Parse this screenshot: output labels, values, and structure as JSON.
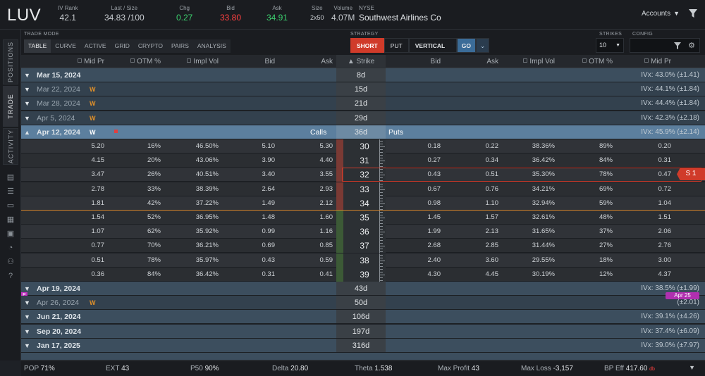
{
  "header": {
    "symbol": "LUV",
    "iv_rank": {
      "label": "IV Rank",
      "value": "42.1"
    },
    "last_size": {
      "label": "Last / Size",
      "value": "34.83 /100"
    },
    "chg": {
      "label": "Chg",
      "value": "0.27"
    },
    "bid": {
      "label": "Bid",
      "value": "33.80"
    },
    "ask": {
      "label": "Ask",
      "value": "34.91"
    },
    "size": {
      "label": "Size",
      "value": "2x50"
    },
    "volume": {
      "label": "Volume",
      "value": "4.07M"
    },
    "exchange": "NYSE",
    "company": "Southwest Airlines Co",
    "accounts": "Accounts"
  },
  "rail": {
    "tabs": [
      "POSITIONS",
      "TRADE",
      "ACTIVITY"
    ]
  },
  "toolbar": {
    "trade_mode_label": "TRADE MODE",
    "tabs": [
      "TABLE",
      "CURVE",
      "ACTIVE",
      "GRID",
      "CRYPTO",
      "PAIRS",
      "ANALYSIS"
    ],
    "strategy_label": "STRATEGY",
    "short": "SHORT",
    "put": "PUT",
    "vertical": "VERTICAL",
    "go": "GO",
    "strikes_label": "STRIKES",
    "strikes_value": "10",
    "config_label": "CONFIG"
  },
  "columns": {
    "call_mid": "Mid Pr",
    "call_otm": "OTM %",
    "call_iv": "Impl Vol",
    "call_bid": "Bid",
    "call_ask": "Ask",
    "strike": "Strike",
    "put_bid": "Bid",
    "put_ask": "Ask",
    "put_iv": "Impl Vol",
    "put_otm": "OTM %",
    "put_mid": "Mid Pr"
  },
  "expirations_top": [
    {
      "date": "Mar 15, 2024",
      "w": "",
      "dte": "8d",
      "ivx": "IVx: 43.0% (±1.41)",
      "dim": false
    },
    {
      "date": "Mar 22, 2024",
      "w": "W",
      "dte": "15d",
      "ivx": "IVx: 44.1% (±1.84)",
      "dim": true
    },
    {
      "date": "Mar 28, 2024",
      "w": "W",
      "dte": "21d",
      "ivx": "IVx: 44.4% (±1.84)",
      "dim": true
    },
    {
      "date": "Apr 5, 2024",
      "w": "W",
      "dte": "29d",
      "ivx": "IVx: 42.3% (±2.18)",
      "dim": true
    }
  ],
  "open_expiration": {
    "date": "Apr 12, 2024",
    "w": "W",
    "dte": "36d",
    "calls": "Calls",
    "puts": "Puts",
    "ivx": "IVx: 45.9% (±2.14)"
  },
  "strikes": [
    {
      "strike": "30",
      "c_mid": "5.20",
      "c_otm": "16%",
      "c_iv": "46.50%",
      "c_bid": "5.10",
      "c_ask": "5.30",
      "p_bid": "0.18",
      "p_ask": "0.22",
      "p_iv": "38.36%",
      "p_otm": "89%",
      "p_mid": "0.20"
    },
    {
      "strike": "31",
      "c_mid": "4.15",
      "c_otm": "20%",
      "c_iv": "43.06%",
      "c_bid": "3.90",
      "c_ask": "4.40",
      "p_bid": "0.27",
      "p_ask": "0.34",
      "p_iv": "36.42%",
      "p_otm": "84%",
      "p_mid": "0.31"
    },
    {
      "strike": "32",
      "c_mid": "3.47",
      "c_otm": "26%",
      "c_iv": "40.51%",
      "c_bid": "3.40",
      "c_ask": "3.55",
      "p_bid": "0.43",
      "p_ask": "0.51",
      "p_iv": "35.30%",
      "p_otm": "78%",
      "p_mid": "0.47"
    },
    {
      "strike": "33",
      "c_mid": "2.78",
      "c_otm": "33%",
      "c_iv": "38.39%",
      "c_bid": "2.64",
      "c_ask": "2.93",
      "p_bid": "0.67",
      "p_ask": "0.76",
      "p_iv": "34.21%",
      "p_otm": "69%",
      "p_mid": "0.72"
    },
    {
      "strike": "34",
      "c_mid": "1.81",
      "c_otm": "42%",
      "c_iv": "37.22%",
      "c_bid": "1.49",
      "c_ask": "2.12",
      "p_bid": "0.98",
      "p_ask": "1.10",
      "p_iv": "32.94%",
      "p_otm": "59%",
      "p_mid": "1.04"
    },
    {
      "strike": "35",
      "c_mid": "1.54",
      "c_otm": "52%",
      "c_iv": "36.95%",
      "c_bid": "1.48",
      "c_ask": "1.60",
      "p_bid": "1.45",
      "p_ask": "1.57",
      "p_iv": "32.61%",
      "p_otm": "48%",
      "p_mid": "1.51"
    },
    {
      "strike": "36",
      "c_mid": "1.07",
      "c_otm": "62%",
      "c_iv": "35.92%",
      "c_bid": "0.99",
      "c_ask": "1.16",
      "p_bid": "1.99",
      "p_ask": "2.13",
      "p_iv": "31.65%",
      "p_otm": "37%",
      "p_mid": "2.06"
    },
    {
      "strike": "37",
      "c_mid": "0.77",
      "c_otm": "70%",
      "c_iv": "36.21%",
      "c_bid": "0.69",
      "c_ask": "0.85",
      "p_bid": "2.68",
      "p_ask": "2.85",
      "p_iv": "31.44%",
      "p_otm": "27%",
      "p_mid": "2.76"
    },
    {
      "strike": "38",
      "c_mid": "0.51",
      "c_otm": "78%",
      "c_iv": "35.97%",
      "c_bid": "0.43",
      "c_ask": "0.59",
      "p_bid": "2.40",
      "p_ask": "3.60",
      "p_iv": "29.55%",
      "p_otm": "18%",
      "p_mid": "3.00"
    },
    {
      "strike": "39",
      "c_mid": "0.36",
      "c_otm": "84%",
      "c_iv": "36.42%",
      "c_bid": "0.31",
      "c_ask": "0.41",
      "p_bid": "4.30",
      "p_ask": "4.45",
      "p_iv": "30.19%",
      "p_otm": "12%",
      "p_mid": "4.37"
    }
  ],
  "selected_label": "S 1",
  "expirations_bottom": [
    {
      "date": "Apr 19, 2024",
      "w": "",
      "dte": "43d",
      "ivx": "IVx: 38.5% (±1.99)",
      "dim": false
    },
    {
      "date": "Apr 26, 2024",
      "w": "W",
      "dte": "50d",
      "ivx": "(±2.01)",
      "dim": true
    },
    {
      "date": "Jun 21, 2024",
      "w": "",
      "dte": "106d",
      "ivx": "IVx: 39.1% (±4.26)",
      "dim": false
    },
    {
      "date": "Sep 20, 2024",
      "w": "",
      "dte": "197d",
      "ivx": "IVx: 37.4% (±6.09)",
      "dim": false
    },
    {
      "date": "Jan 17, 2025",
      "w": "",
      "dte": "316d",
      "ivx": "IVx: 39.0% (±7.97)",
      "dim": false
    }
  ],
  "earnings_badge": "E",
  "earnings_date": "Apr 25",
  "footer": {
    "pop_label": "POP",
    "pop": "71%",
    "ext_label": "EXT",
    "ext": "43",
    "p50_label": "P50",
    "p50": "90%",
    "delta_label": "Delta",
    "delta": "20.80",
    "theta_label": "Theta",
    "theta": "1.538",
    "maxprofit_label": "Max Profit",
    "maxprofit": "43",
    "maxloss_label": "Max Loss",
    "maxloss": "-3,157",
    "bpeff_label": "BP Eff",
    "bpeff": "417.60",
    "bpeff_suffix": "db"
  },
  "colors": {
    "short": "#d03b2a",
    "green": "#3ccf6e",
    "red": "#ff4040",
    "open_exp": "#5c7f9e",
    "atm": "#d0822a"
  }
}
